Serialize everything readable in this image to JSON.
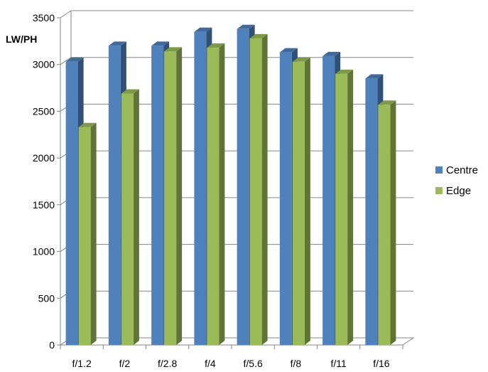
{
  "chart_data": {
    "type": "bar",
    "categories": [
      "f/1.2",
      "f/2",
      "f/2.8",
      "f/4",
      "f/5.6",
      "f/8",
      "f/11",
      "f/16"
    ],
    "series": [
      {
        "name": "Centre",
        "values": [
          3030,
          3200,
          3200,
          3350,
          3380,
          3130,
          3090,
          2850
        ],
        "color": "#4f81bd"
      },
      {
        "name": "Edge",
        "values": [
          2330,
          2690,
          3140,
          3180,
          3280,
          3030,
          2900,
          2570
        ],
        "color": "#9bbb59"
      }
    ],
    "ylabel": "LW/PH",
    "ylim": [
      0,
      3500
    ],
    "yticks": [
      "0",
      "500",
      "1000",
      "1500",
      "2000",
      "2500",
      "3000",
      "3500"
    ],
    "grid": true,
    "legend_position": "right"
  }
}
